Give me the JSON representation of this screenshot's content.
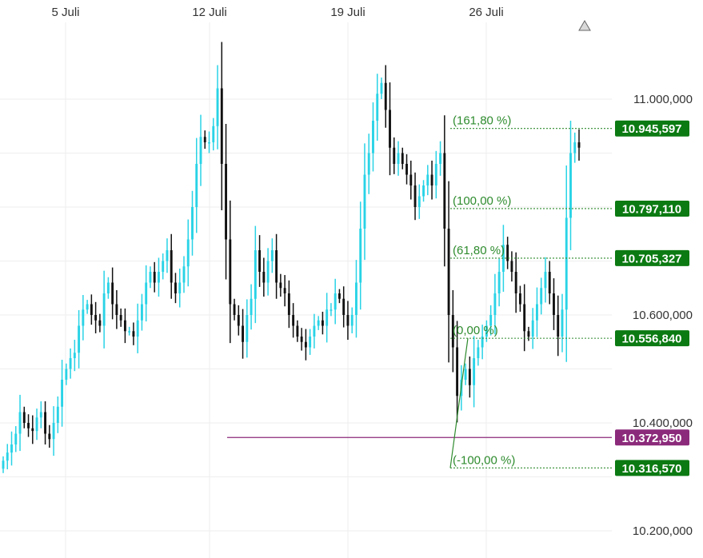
{
  "chart_data": {
    "type": "candlestick",
    "x_ticks": [
      "5 Juli",
      "12 Juli",
      "19 Juli",
      "26 Juli"
    ],
    "y_ticks": [
      "11.000,000",
      "10.600,000",
      "10.400,000",
      "10.200,000"
    ],
    "y_tick_values": [
      11000000,
      10600000,
      10400000,
      10200000
    ],
    "ylim": [
      10160000,
      11100000
    ],
    "grid": true,
    "colors": {
      "up": "#29d3e6",
      "down": "#111111",
      "fib": "#2e8b2e",
      "fib_tag": "#0b7a12",
      "support": "#8b2a7a"
    },
    "fib_levels": [
      {
        "label": "(161,80 %)",
        "value": 10945597,
        "tag": "10.945,597"
      },
      {
        "label": "(100,00 %)",
        "value": 10797110,
        "tag": "10.797,110"
      },
      {
        "label": "(61,80 %)",
        "value": 10705327,
        "tag": "10.705,327"
      },
      {
        "label": "(0,00 %)",
        "value": 10556840,
        "tag": "10.556,840"
      },
      {
        "label": "(-100,00 %)",
        "value": 10316570,
        "tag": "10.316,570"
      }
    ],
    "support_level": {
      "value": 10372950,
      "tag": "10.372,950"
    },
    "close_series": [
      10330000,
      10345000,
      10360000,
      10380000,
      10420000,
      10400000,
      10390000,
      10385000,
      10410000,
      10420000,
      10380000,
      10370000,
      10400000,
      10430000,
      10480000,
      10500000,
      10520000,
      10530000,
      10580000,
      10610000,
      10620000,
      10600000,
      10590000,
      10580000,
      10640000,
      10660000,
      10620000,
      10600000,
      10590000,
      10570000,
      10570000,
      10560000,
      10590000,
      10620000,
      10660000,
      10680000,
      10660000,
      10680000,
      10700000,
      10720000,
      10660000,
      10640000,
      10660000,
      10690000,
      10740000,
      10800000,
      10880000,
      10930000,
      10920000,
      10920000,
      10950000,
      11020000,
      10880000,
      10740000,
      10620000,
      10600000,
      10580000,
      10550000,
      10600000,
      10630000,
      10720000,
      10680000,
      10660000,
      10700000,
      10720000,
      10660000,
      10650000,
      10640000,
      10600000,
      10580000,
      10560000,
      10550000,
      10540000,
      10560000,
      10580000,
      10590000,
      10580000,
      10610000,
      10610000,
      10640000,
      10630000,
      10600000,
      10580000,
      10600000,
      10660000,
      10760000,
      10860000,
      10900000,
      10960000,
      11010000,
      11030000,
      10980000,
      10910000,
      10880000,
      10900000,
      10880000,
      10860000,
      10840000,
      10800000,
      10820000,
      10840000,
      10860000,
      10840000,
      10880000,
      10900000,
      10760000,
      10600000,
      10540000,
      10450000,
      10480000,
      10500000,
      10470000,
      10520000,
      10540000,
      10560000,
      10580000,
      10600000,
      10640000,
      10680000,
      10730000,
      10700000,
      10680000,
      10640000,
      10620000,
      10570000,
      10560000,
      10590000,
      10620000,
      10650000,
      10680000,
      10640000,
      10600000,
      10560000,
      10610000,
      10780000,
      10900000,
      10920000,
      10910000
    ]
  }
}
